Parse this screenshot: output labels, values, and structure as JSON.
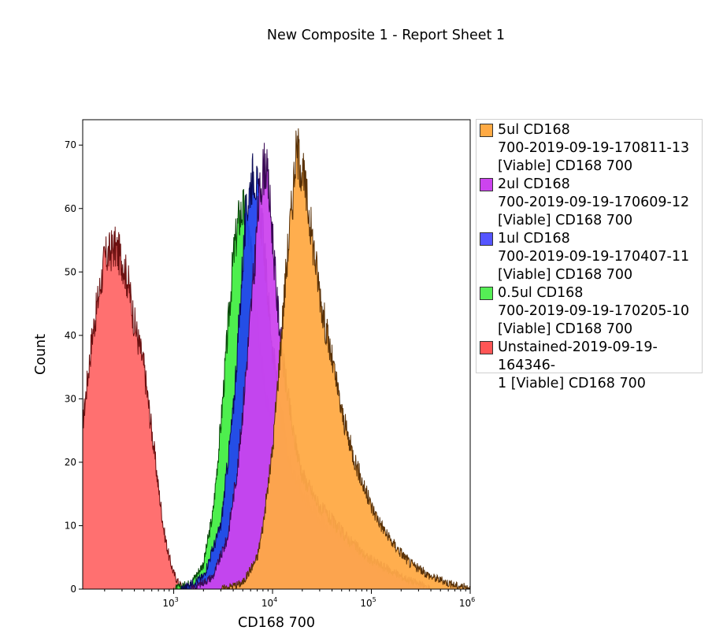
{
  "chart_data": {
    "type": "area",
    "title": "New Composite 1 - Report Sheet 1",
    "xlabel": "CD168 700",
    "ylabel": "Count",
    "x_scale": "log",
    "xlim": [
      120,
      1000000
    ],
    "ylim": [
      0,
      74
    ],
    "y_ticks": [
      0,
      10,
      20,
      30,
      40,
      50,
      60,
      70
    ],
    "x_ticks": [
      {
        "value": 1000,
        "base": "10",
        "exp": "3"
      },
      {
        "value": 10000,
        "base": "10",
        "exp": "4"
      },
      {
        "value": 100000,
        "base": "10",
        "exp": "5"
      },
      {
        "value": 1000000,
        "base": "10",
        "exp": "6"
      }
    ],
    "grid": false,
    "legend_position": "right",
    "series": [
      {
        "name": "Unstained-2019-09-19-164346-1 [Viable] CD168 700",
        "color": "#ff5050",
        "stroke": "#6a1010",
        "x": [
          120,
          150,
          200,
          250,
          300,
          350,
          400,
          500,
          600,
          700,
          800,
          900,
          1000,
          1100,
          1200,
          1400,
          1700,
          2000
        ],
        "y": [
          26,
          40,
          52,
          54,
          52,
          48,
          42,
          35,
          25,
          16,
          9,
          5,
          2.5,
          1.2,
          0.5,
          0.2,
          0.1,
          0
        ]
      },
      {
        "name": "0.5ul CD168 700-2019-09-19-170205-10 [Viable] CD168 700",
        "color": "#44ee44",
        "stroke": "#0b4a0b",
        "x": [
          1000,
          1500,
          2000,
          2500,
          3000,
          3500,
          4000,
          4500,
          5000,
          5500,
          6000,
          7000,
          8000,
          10000,
          13000,
          17000,
          25000,
          40000,
          70000,
          150000,
          300000
        ],
        "y": [
          0,
          1,
          4,
          12,
          26,
          40,
          52,
          58,
          60,
          58,
          53,
          44,
          34,
          25,
          18,
          14,
          11,
          8,
          5,
          2,
          0
        ]
      },
      {
        "name": "1ul CD168 700-2019-09-19-170407-11 [Viable] CD168 700",
        "color": "#2244ee",
        "stroke": "#0a0a55",
        "x": [
          1200,
          2000,
          3000,
          4000,
          4500,
          5000,
          5500,
          6000,
          6500,
          7000,
          8000,
          9000,
          10000,
          12000,
          15000,
          20000,
          30000,
          50000,
          80000,
          150000,
          300000
        ],
        "y": [
          0,
          2,
          10,
          28,
          40,
          52,
          60,
          64,
          66,
          63,
          56,
          46,
          38,
          28,
          20,
          15,
          11,
          8,
          5,
          2,
          0
        ]
      },
      {
        "name": "2ul CD168 700-2019-09-19-170609-12 [Viable] CD168 700",
        "color": "#cc44ee",
        "stroke": "#3a0a55",
        "x": [
          1500,
          2500,
          3500,
          4500,
          5500,
          6500,
          7000,
          7500,
          8000,
          8500,
          9000,
          10000,
          11000,
          13000,
          16000,
          20000,
          30000,
          50000,
          90000,
          200000,
          400000
        ],
        "y": [
          0,
          2,
          8,
          20,
          36,
          50,
          58,
          63,
          66,
          67,
          64,
          56,
          46,
          35,
          25,
          18,
          13,
          9,
          5,
          2,
          0
        ]
      },
      {
        "name": "5ul CD168 700-2019-09-19-170811-13 [Viable] CD168 700",
        "color": "#ffaa44",
        "stroke": "#5a3208",
        "x": [
          3000,
          5000,
          7000,
          8000,
          10000,
          12000,
          14000,
          16000,
          17000,
          18000,
          20000,
          23000,
          27000,
          32000,
          40000,
          50000,
          60000,
          80000,
          100000,
          150000,
          250000,
          400000,
          700000,
          1000000
        ],
        "y": [
          0,
          1,
          5,
          10,
          22,
          38,
          52,
          62,
          68,
          69,
          66,
          60,
          52,
          44,
          36,
          28,
          23,
          17,
          13,
          8,
          4,
          2,
          0.6,
          0.2
        ]
      }
    ]
  },
  "legend": {
    "items": [
      {
        "label": "5ul CD168\n700-2019-09-19-170811-13\n[Viable] CD168 700",
        "color": "#ffaa44"
      },
      {
        "label": "2ul CD168\n700-2019-09-19-170609-12\n[Viable] CD168 700",
        "color": "#cc44ee"
      },
      {
        "label": "1ul CD168\n700-2019-09-19-170407-11\n[Viable] CD168 700",
        "color": "#5555ff"
      },
      {
        "label": "0.5ul CD168\n700-2019-09-19-170205-10\n[Viable] CD168 700",
        "color": "#55ee55"
      },
      {
        "label": "Unstained-2019-09-19-164346-\n1 [Viable] CD168 700",
        "color": "#ff5555"
      }
    ]
  }
}
